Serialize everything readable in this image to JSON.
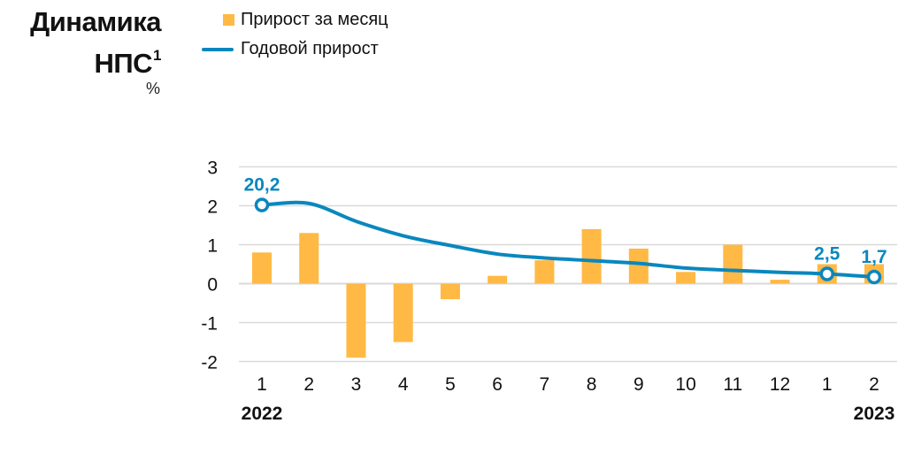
{
  "header": {
    "title_line1": "Динамика",
    "title_line2": "НПС",
    "title_footnote": "1",
    "unit": "%"
  },
  "legend": [
    {
      "label": "Прирост за месяц",
      "type": "bar",
      "color": "#FFB944"
    },
    {
      "label": "Годовой прирост",
      "type": "line",
      "color": "#0A87BE"
    }
  ],
  "colors": {
    "bar": "#FFB944",
    "line": "#0A87BE",
    "grid": "#DADADA",
    "axis_text": "#111111"
  },
  "chart_data": {
    "type": "bar+line",
    "title": "Динамика НПС¹",
    "ylabel": "%",
    "xlabel": "",
    "ylim": [
      -2,
      3
    ],
    "yticks": [
      3,
      2,
      1,
      0,
      -1,
      -2
    ],
    "grid": true,
    "legend_position": "top",
    "categories": [
      "1",
      "2",
      "3",
      "4",
      "5",
      "6",
      "7",
      "8",
      "9",
      "10",
      "11",
      "12",
      "1",
      "2"
    ],
    "year_labels": [
      {
        "index": 0,
        "label": "2022"
      },
      {
        "index": 13,
        "label": "2023"
      }
    ],
    "series": [
      {
        "name": "Прирост за месяц",
        "type": "bar",
        "values": [
          0.8,
          1.3,
          -1.9,
          -1.5,
          -0.4,
          0.2,
          0.6,
          1.4,
          0.9,
          0.3,
          1.0,
          0.1,
          0.5,
          0.5
        ]
      },
      {
        "name": "Годовой прирост",
        "type": "line",
        "note": "plotted on scale 1/10 (e.g. 20.2 shown at 2.02)",
        "values": [
          20.2,
          20.6,
          16.0,
          12.3,
          9.8,
          7.6,
          6.6,
          5.9,
          5.2,
          4.0,
          3.4,
          2.9,
          2.5,
          1.7
        ]
      }
    ],
    "annotations": [
      {
        "index": 0,
        "series": "Годовой прирост",
        "label": "20,2"
      },
      {
        "index": 12,
        "series": "Годовой прирост",
        "label": "2,5"
      },
      {
        "index": 13,
        "series": "Годовой прирост",
        "label": "1,7"
      }
    ]
  }
}
